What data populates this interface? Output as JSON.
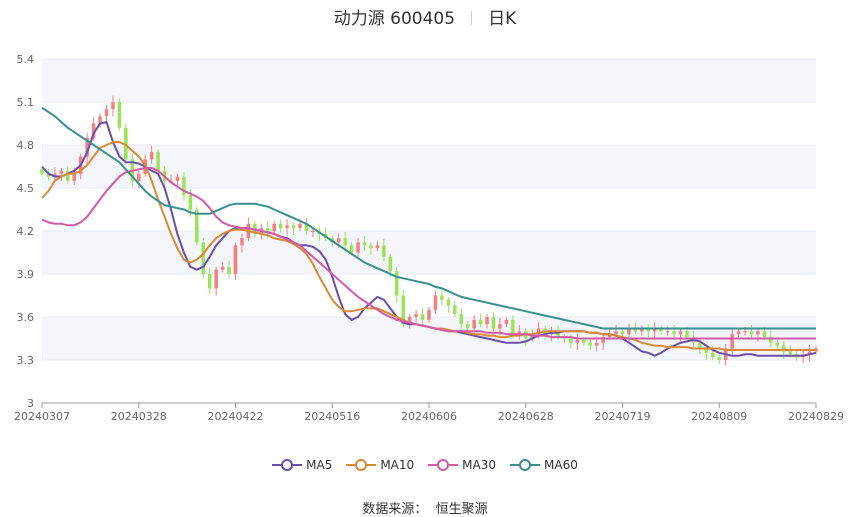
{
  "header": {
    "stock": "动力源 600405",
    "period": "日K"
  },
  "footer": {
    "source_label": "数据来源：",
    "source_name": "恒生聚源"
  },
  "colors": {
    "up": "#f08080",
    "down": "#9be35a",
    "grid": "#e8ecf4",
    "band": "#f4f6fb",
    "MA5": "#6a4fa8",
    "MA10": "#d98a34",
    "MA30": "#d25aa8",
    "MA60": "#3b8f8f"
  },
  "chart_data": {
    "type": "candlestick",
    "title": "动力源 600405 日K",
    "ylim": [
      3,
      5.4
    ],
    "y_ticks": [
      "3",
      "3.3",
      "3.6",
      "3.9",
      "4.2",
      "4.5",
      "4.8",
      "5.1",
      "5.4"
    ],
    "x_ticks": [
      "20240307",
      "20240328",
      "20240422",
      "20240516",
      "20240606",
      "20240628",
      "20240719",
      "20240809",
      "20240829"
    ],
    "x_tick_index": [
      0,
      15,
      30,
      45,
      60,
      75,
      90,
      105,
      120
    ],
    "n_days": 121,
    "candle_closes": [
      4.6,
      4.58,
      4.6,
      4.62,
      4.55,
      4.6,
      4.72,
      4.85,
      4.95,
      5.0,
      5.05,
      5.1,
      4.92,
      4.7,
      4.55,
      4.6,
      4.7,
      4.75,
      4.62,
      4.55,
      4.55,
      4.58,
      4.45,
      4.35,
      4.12,
      3.9,
      3.8,
      3.93,
      3.95,
      3.9,
      4.1,
      4.15,
      4.25,
      4.18,
      4.22,
      4.2,
      4.25,
      4.22,
      4.24,
      4.22,
      4.25,
      4.2,
      4.2,
      4.18,
      4.15,
      4.12,
      4.15,
      4.1,
      4.05,
      4.12,
      4.1,
      4.08,
      4.1,
      4.02,
      3.92,
      3.75,
      3.55,
      3.6,
      3.62,
      3.58,
      3.65,
      3.75,
      3.72,
      3.68,
      3.62,
      3.55,
      3.52,
      3.58,
      3.55,
      3.6,
      3.52,
      3.55,
      3.58,
      3.48,
      3.5,
      3.45,
      3.48,
      3.52,
      3.48,
      3.5,
      3.46,
      3.45,
      3.42,
      3.44,
      3.42,
      3.4,
      3.42,
      3.46,
      3.48,
      3.5,
      3.48,
      3.52,
      3.5,
      3.52,
      3.5,
      3.52,
      3.5,
      3.5,
      3.48,
      3.5,
      3.46,
      3.42,
      3.38,
      3.35,
      3.32,
      3.3,
      3.38,
      3.48,
      3.5,
      3.5,
      3.48,
      3.5,
      3.46,
      3.42,
      3.4,
      3.36,
      3.34,
      3.32,
      3.34,
      3.36,
      3.38
    ],
    "series": [
      {
        "name": "MA5",
        "values": [
          4.65,
          4.6,
          4.58,
          4.58,
          4.6,
          4.62,
          4.66,
          4.75,
          4.88,
          4.95,
          4.96,
          4.82,
          4.72,
          4.68,
          4.68,
          4.67,
          4.65,
          4.62,
          4.6,
          4.5,
          4.35,
          4.18,
          4.05,
          3.95,
          3.93,
          3.95,
          4.02,
          4.1,
          4.15,
          4.2,
          4.22,
          4.22,
          4.22,
          4.21,
          4.2,
          4.19,
          4.18,
          4.16,
          4.15,
          4.12,
          4.1,
          4.1,
          4.09,
          4.06,
          4.0,
          3.88,
          3.74,
          3.62,
          3.58,
          3.6,
          3.66,
          3.7,
          3.74,
          3.72,
          3.66,
          3.6,
          3.56,
          3.55,
          3.55,
          3.54,
          3.53,
          3.52,
          3.51,
          3.5,
          3.5,
          3.49,
          3.48,
          3.47,
          3.46,
          3.45,
          3.44,
          3.43,
          3.42,
          3.42,
          3.42,
          3.43,
          3.45,
          3.47,
          3.48,
          3.49,
          3.49,
          3.5,
          3.5,
          3.5,
          3.5,
          3.49,
          3.49,
          3.48,
          3.48,
          3.47,
          3.45,
          3.42,
          3.39,
          3.36,
          3.35,
          3.33,
          3.35,
          3.38,
          3.4,
          3.42,
          3.43,
          3.44,
          3.43,
          3.4,
          3.37,
          3.35,
          3.34,
          3.33,
          3.33,
          3.34,
          3.34,
          3.33,
          3.33,
          3.33,
          3.33,
          3.33,
          3.33,
          3.33,
          3.33,
          3.34,
          3.35
        ]
      },
      {
        "name": "MA10",
        "values": [
          4.43,
          4.48,
          4.55,
          4.58,
          4.6,
          4.6,
          4.62,
          4.66,
          4.72,
          4.78,
          4.8,
          4.82,
          4.82,
          4.8,
          4.76,
          4.72,
          4.66,
          4.55,
          4.42,
          4.3,
          4.18,
          4.08,
          4.0,
          3.98,
          4.0,
          4.04,
          4.1,
          4.15,
          4.18,
          4.2,
          4.21,
          4.21,
          4.2,
          4.19,
          4.18,
          4.17,
          4.15,
          4.14,
          4.13,
          4.11,
          4.08,
          4.04,
          3.97,
          3.88,
          3.8,
          3.72,
          3.67,
          3.64,
          3.64,
          3.65,
          3.66,
          3.66,
          3.66,
          3.64,
          3.62,
          3.6,
          3.58,
          3.56,
          3.55,
          3.54,
          3.53,
          3.52,
          3.52,
          3.51,
          3.5,
          3.5,
          3.49,
          3.48,
          3.48,
          3.47,
          3.47,
          3.46,
          3.46,
          3.47,
          3.47,
          3.48,
          3.48,
          3.49,
          3.5,
          3.5,
          3.5,
          3.5,
          3.5,
          3.5,
          3.5,
          3.49,
          3.49,
          3.48,
          3.48,
          3.47,
          3.46,
          3.45,
          3.44,
          3.42,
          3.41,
          3.4,
          3.4,
          3.39,
          3.39,
          3.39,
          3.39,
          3.38,
          3.38,
          3.38,
          3.38,
          3.38,
          3.37,
          3.37,
          3.37,
          3.37,
          3.37,
          3.37,
          3.37,
          3.37,
          3.37,
          3.37,
          3.37,
          3.37,
          3.37,
          3.37,
          3.37
        ]
      },
      {
        "name": "MA30",
        "values": [
          4.28,
          4.26,
          4.25,
          4.25,
          4.24,
          4.24,
          4.26,
          4.3,
          4.36,
          4.42,
          4.48,
          4.53,
          4.58,
          4.61,
          4.62,
          4.63,
          4.64,
          4.64,
          4.62,
          4.58,
          4.54,
          4.51,
          4.48,
          4.46,
          4.44,
          4.41,
          4.36,
          4.3,
          4.26,
          4.24,
          4.23,
          4.22,
          4.22,
          4.21,
          4.2,
          4.19,
          4.18,
          4.16,
          4.14,
          4.12,
          4.1,
          4.06,
          4.02,
          3.98,
          3.94,
          3.9,
          3.86,
          3.82,
          3.78,
          3.74,
          3.71,
          3.68,
          3.65,
          3.62,
          3.6,
          3.58,
          3.57,
          3.56,
          3.55,
          3.54,
          3.53,
          3.52,
          3.51,
          3.5,
          3.5,
          3.5,
          3.5,
          3.5,
          3.5,
          3.49,
          3.49,
          3.49,
          3.48,
          3.48,
          3.48,
          3.48,
          3.47,
          3.47,
          3.47,
          3.46,
          3.46,
          3.46,
          3.46,
          3.45,
          3.45,
          3.45,
          3.45,
          3.45,
          3.45,
          3.45,
          3.45,
          3.45,
          3.45,
          3.45,
          3.45,
          3.45,
          3.45,
          3.45,
          3.45,
          3.45,
          3.45,
          3.45,
          3.45,
          3.45,
          3.45,
          3.45,
          3.45,
          3.45,
          3.45,
          3.45,
          3.45,
          3.45,
          3.45,
          3.45,
          3.45,
          3.45,
          3.45,
          3.45,
          3.45,
          3.45,
          3.45
        ]
      },
      {
        "name": "MA60",
        "values": [
          5.06,
          5.03,
          5.0,
          4.96,
          4.92,
          4.89,
          4.86,
          4.83,
          4.8,
          4.77,
          4.74,
          4.71,
          4.68,
          4.63,
          4.58,
          4.53,
          4.48,
          4.44,
          4.41,
          4.38,
          4.37,
          4.36,
          4.35,
          4.33,
          4.32,
          4.32,
          4.32,
          4.34,
          4.36,
          4.38,
          4.39,
          4.39,
          4.39,
          4.39,
          4.38,
          4.37,
          4.35,
          4.33,
          4.31,
          4.29,
          4.27,
          4.25,
          4.22,
          4.19,
          4.16,
          4.13,
          4.1,
          4.07,
          4.04,
          4.01,
          3.98,
          3.96,
          3.94,
          3.92,
          3.9,
          3.88,
          3.87,
          3.86,
          3.85,
          3.84,
          3.83,
          3.81,
          3.8,
          3.78,
          3.76,
          3.74,
          3.73,
          3.72,
          3.71,
          3.7,
          3.69,
          3.68,
          3.67,
          3.66,
          3.65,
          3.64,
          3.63,
          3.62,
          3.61,
          3.6,
          3.59,
          3.58,
          3.57,
          3.56,
          3.55,
          3.54,
          3.53,
          3.52,
          3.52,
          3.52,
          3.52,
          3.52,
          3.52,
          3.52,
          3.52,
          3.52,
          3.52,
          3.52,
          3.52,
          3.52,
          3.52,
          3.52,
          3.52,
          3.52,
          3.52,
          3.52,
          3.52,
          3.52,
          3.52,
          3.52,
          3.52,
          3.52,
          3.52,
          3.52,
          3.52,
          3.52,
          3.52,
          3.52,
          3.52,
          3.52,
          3.52
        ]
      }
    ]
  }
}
